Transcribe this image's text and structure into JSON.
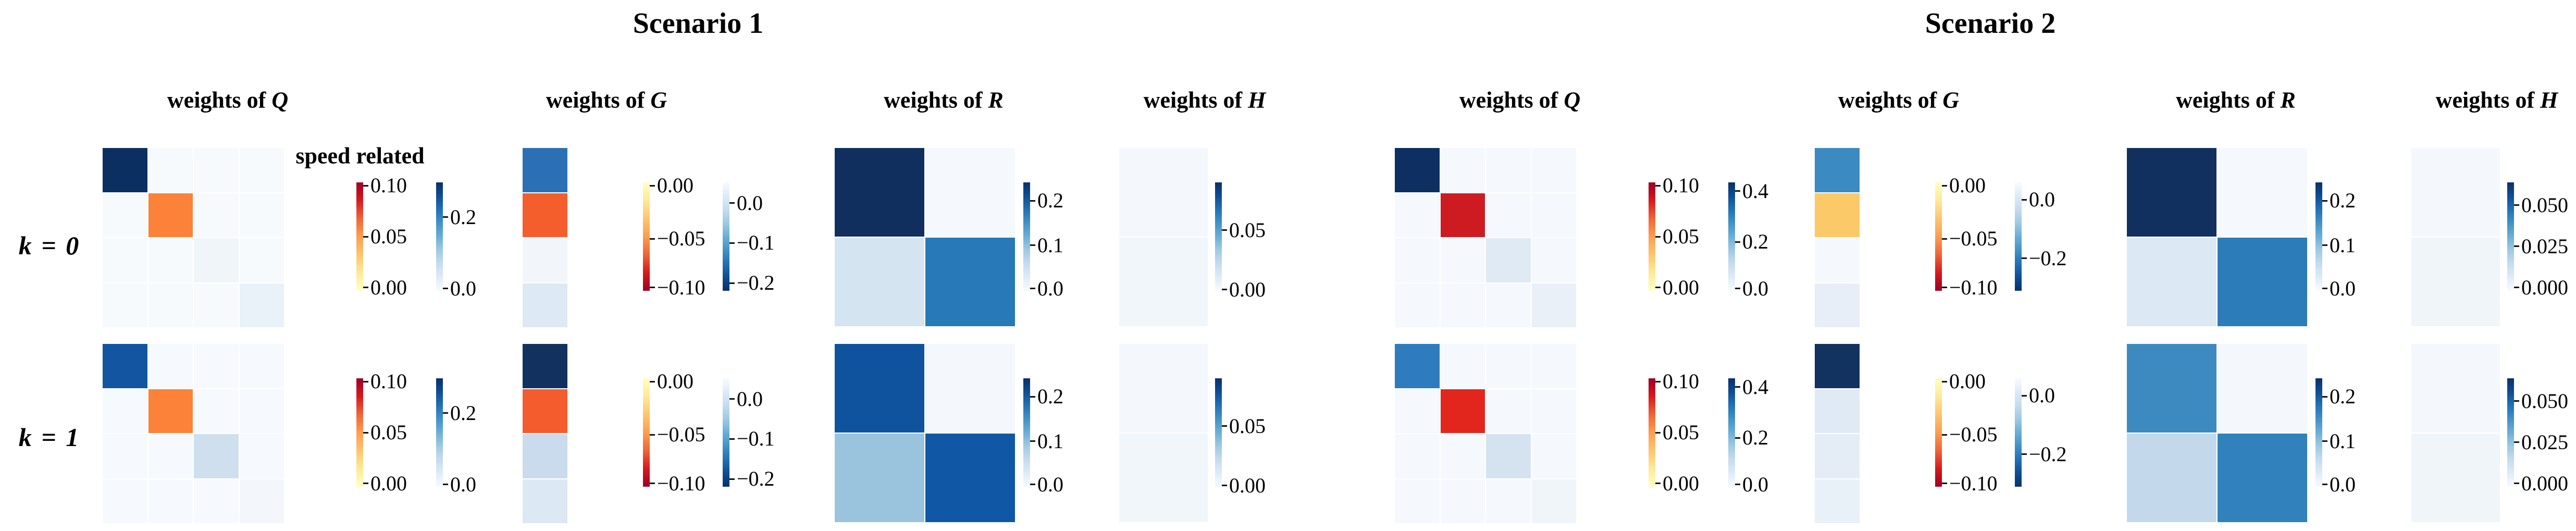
{
  "figure": {
    "row_labels": [
      "k = 0",
      "k = 1"
    ],
    "annotation": "speed related",
    "header_prefix": "weights of",
    "scenarios": [
      {
        "title": "Scenario 1",
        "matrices": [
          "Q",
          "G",
          "R",
          "H"
        ]
      },
      {
        "title": "Scenario 2",
        "matrices": [
          "Q",
          "G",
          "R",
          "H"
        ]
      }
    ]
  },
  "palettes": {
    "speed_top_red": [
      "#9c0026",
      "#d7191c",
      "#ef6538",
      "#fb9e4f",
      "#fdc570",
      "#fee999",
      "#ffffc2"
    ],
    "speed_top_yellow": [
      "#ffffc2",
      "#fee999",
      "#fdc570",
      "#fb9e4f",
      "#ef6538",
      "#d7191c",
      "#9c0026"
    ],
    "blues_top_dark": [
      "#08306b",
      "#0f4d92",
      "#2171b5",
      "#4292c6",
      "#6baed6",
      "#9ecae1",
      "#c6dbef",
      "#deebf7",
      "#f7fbff"
    ],
    "blues_top_light": [
      "#f7fbff",
      "#deebf7",
      "#c6dbef",
      "#9ecae1",
      "#6baed6",
      "#4292c6",
      "#2171b5",
      "#0f4d92",
      "#08306b"
    ]
  },
  "chart_data": [
    {
      "type": "heatmap",
      "scenario": 0,
      "scenario_label": "Scenario 1",
      "row": 0,
      "row_label": "k = 0",
      "matrix": "Q",
      "grid": [
        4,
        4
      ],
      "cells": [
        [
          "#0c2f62",
          "#f7fafd",
          "#f7fafd",
          "#f7fafd"
        ],
        [
          "#f7fafd",
          "#fb8238",
          "#f7fafd",
          "#f7fafd"
        ],
        [
          "#f7fafd",
          "#f7fafd",
          "#f0f5fa",
          "#f7fafd"
        ],
        [
          "#f7fafd",
          "#f7fafd",
          "#f7fafd",
          "#e9f1f9"
        ]
      ],
      "values_approx": [
        [
          0.29,
          0,
          0,
          0
        ],
        [
          0,
          0.05,
          0,
          0
        ],
        [
          0,
          0,
          0.01,
          0
        ],
        [
          0,
          0,
          0,
          0.02
        ]
      ],
      "colorbars": [
        {
          "palette": "speed_top_red",
          "ticks": [
            {
              "label": "0.10",
              "pos": 0.03
            },
            {
              "label": "0.05",
              "pos": 0.5
            },
            {
              "label": "0.00",
              "pos": 0.97
            }
          ]
        },
        {
          "palette": "blues_top_dark",
          "ticks": [
            {
              "label": "0.2",
              "pos": 0.32
            },
            {
              "label": "0.0",
              "pos": 0.98
            }
          ]
        }
      ]
    },
    {
      "type": "heatmap",
      "scenario": 0,
      "scenario_label": "Scenario 1",
      "row": 0,
      "row_label": "k = 0",
      "matrix": "G",
      "grid": [
        4,
        1
      ],
      "cells": [
        [
          "#2b70b5"
        ],
        [
          "#f45e2c"
        ],
        [
          "#f2f6fb"
        ],
        [
          "#dde9f4"
        ]
      ],
      "values_approx": [
        [
          -0.15
        ],
        [
          -0.045
        ],
        [
          -0.005
        ],
        [
          -0.03
        ]
      ],
      "colorbars": [
        {
          "palette": "speed_top_yellow",
          "ticks": [
            {
              "label": "0.00",
              "pos": 0.03
            },
            {
              "label": "−0.05",
              "pos": 0.52
            },
            {
              "label": "−0.10",
              "pos": 0.97
            }
          ]
        },
        {
          "palette": "blues_top_light",
          "ticks": [
            {
              "label": "0.0",
              "pos": 0.19
            },
            {
              "label": "−0.1",
              "pos": 0.56
            },
            {
              "label": "−0.2",
              "pos": 0.93
            }
          ]
        }
      ]
    },
    {
      "type": "heatmap",
      "scenario": 0,
      "scenario_label": "Scenario 1",
      "row": 0,
      "row_label": "k = 0",
      "matrix": "R",
      "grid": [
        2,
        2
      ],
      "cells": [
        [
          "#102f5e",
          "#f5f8fd"
        ],
        [
          "#d5e4f1",
          "#2779b8"
        ]
      ],
      "values_approx": [
        [
          0.27,
          0.005
        ],
        [
          0.035,
          0.17
        ]
      ],
      "colorbars": [
        {
          "palette": "blues_top_dark",
          "ticks": [
            {
              "label": "0.2",
              "pos": 0.17
            },
            {
              "label": "0.1",
              "pos": 0.58
            },
            {
              "label": "0.0",
              "pos": 0.98
            }
          ]
        }
      ]
    },
    {
      "type": "heatmap",
      "scenario": 0,
      "scenario_label": "Scenario 1",
      "row": 0,
      "row_label": "k = 0",
      "matrix": "H",
      "grid": [
        2,
        1
      ],
      "cells": [
        [
          "#f4f8fd"
        ],
        [
          "#f1f6fb"
        ]
      ],
      "values_approx": [
        [
          0.003
        ],
        [
          0.005
        ]
      ],
      "colorbars": [
        {
          "palette": "blues_top_dark",
          "ticks": [
            {
              "label": "0.05",
              "pos": 0.44
            },
            {
              "label": "0.00",
              "pos": 0.99
            }
          ]
        }
      ]
    },
    {
      "type": "heatmap",
      "scenario": 0,
      "scenario_label": "Scenario 1",
      "row": 1,
      "row_label": "k = 1",
      "matrix": "Q",
      "grid": [
        4,
        4
      ],
      "cells": [
        [
          "#1355a0",
          "#f6f9fd",
          "#f6f9fd",
          "#f6f9fd"
        ],
        [
          "#f6f9fd",
          "#fb8238",
          "#f6f9fd",
          "#f6f9fd"
        ],
        [
          "#f6f9fd",
          "#f6f9fd",
          "#cfdfed",
          "#f6f9fd"
        ],
        [
          "#f6f9fd",
          "#f6f9fd",
          "#f6f9fd",
          "#f3f7fb"
        ]
      ],
      "values_approx": [
        [
          0.24,
          0,
          0,
          0
        ],
        [
          0,
          0.05,
          0,
          0
        ],
        [
          0,
          0,
          0.055,
          0
        ],
        [
          0,
          0,
          0,
          0.01
        ]
      ],
      "colorbars": [
        {
          "palette": "speed_top_red",
          "ticks": [
            {
              "label": "0.10",
              "pos": 0.03
            },
            {
              "label": "0.05",
              "pos": 0.5
            },
            {
              "label": "0.00",
              "pos": 0.97
            }
          ]
        },
        {
          "palette": "blues_top_dark",
          "ticks": [
            {
              "label": "0.2",
              "pos": 0.32
            },
            {
              "label": "0.0",
              "pos": 0.98
            }
          ]
        }
      ]
    },
    {
      "type": "heatmap",
      "scenario": 0,
      "scenario_label": "Scenario 1",
      "row": 1,
      "row_label": "k = 1",
      "matrix": "G",
      "grid": [
        4,
        1
      ],
      "cells": [
        [
          "#12315f"
        ],
        [
          "#f45c2e"
        ],
        [
          "#c9dbec"
        ],
        [
          "#dce8f4"
        ]
      ],
      "values_approx": [
        [
          -0.22
        ],
        [
          -0.05
        ],
        [
          -0.04
        ],
        [
          -0.025
        ]
      ],
      "colorbars": [
        {
          "palette": "speed_top_yellow",
          "ticks": [
            {
              "label": "0.00",
              "pos": 0.03
            },
            {
              "label": "−0.05",
              "pos": 0.52
            },
            {
              "label": "−0.10",
              "pos": 0.97
            }
          ]
        },
        {
          "palette": "blues_top_light",
          "ticks": [
            {
              "label": "0.0",
              "pos": 0.19
            },
            {
              "label": "−0.1",
              "pos": 0.56
            },
            {
              "label": "−0.2",
              "pos": 0.93
            }
          ]
        }
      ]
    },
    {
      "type": "heatmap",
      "scenario": 0,
      "scenario_label": "Scenario 1",
      "row": 1,
      "row_label": "k = 1",
      "matrix": "R",
      "grid": [
        2,
        2
      ],
      "cells": [
        [
          "#0f539e",
          "#f4f8fd"
        ],
        [
          "#9ac4dd",
          "#1058a5"
        ]
      ],
      "values_approx": [
        [
          0.21,
          0.005
        ],
        [
          0.09,
          0.2
        ]
      ],
      "colorbars": [
        {
          "palette": "blues_top_dark",
          "ticks": [
            {
              "label": "0.2",
              "pos": 0.17
            },
            {
              "label": "0.1",
              "pos": 0.58
            },
            {
              "label": "0.0",
              "pos": 0.98
            }
          ]
        }
      ]
    },
    {
      "type": "heatmap",
      "scenario": 0,
      "scenario_label": "Scenario 1",
      "row": 1,
      "row_label": "k = 1",
      "matrix": "H",
      "grid": [
        2,
        1
      ],
      "cells": [
        [
          "#f4f8fd"
        ],
        [
          "#f1f6fb"
        ]
      ],
      "values_approx": [
        [
          0.003
        ],
        [
          0.005
        ]
      ],
      "colorbars": [
        {
          "palette": "blues_top_dark",
          "ticks": [
            {
              "label": "0.05",
              "pos": 0.44
            },
            {
              "label": "0.00",
              "pos": 0.99
            }
          ]
        }
      ]
    },
    {
      "type": "heatmap",
      "scenario": 1,
      "scenario_label": "Scenario 2",
      "row": 0,
      "row_label": "k = 0",
      "matrix": "Q",
      "grid": [
        4,
        4
      ],
      "cells": [
        [
          "#0d2f62",
          "#f5f8fd",
          "#f5f8fd",
          "#f5f8fd"
        ],
        [
          "#f5f8fd",
          "#cd1b21",
          "#f5f8fd",
          "#f5f8fd"
        ],
        [
          "#f5f8fd",
          "#f5f8fd",
          "#e0eaf4",
          "#f5f8fd"
        ],
        [
          "#f5f8fd",
          "#f5f8fd",
          "#f5f8fd",
          "#e9f0f7"
        ]
      ],
      "values_approx": [
        [
          0.44,
          0,
          0,
          0
        ],
        [
          0,
          0.09,
          0,
          0
        ],
        [
          0,
          0,
          0.03,
          0
        ],
        [
          0,
          0,
          0,
          0.02
        ]
      ],
      "colorbars": [
        {
          "palette": "speed_top_red",
          "ticks": [
            {
              "label": "0.10",
              "pos": 0.03
            },
            {
              "label": "0.05",
              "pos": 0.5
            },
            {
              "label": "0.00",
              "pos": 0.97
            }
          ]
        },
        {
          "palette": "blues_top_dark",
          "ticks": [
            {
              "label": "0.4",
              "pos": 0.08
            },
            {
              "label": "0.2",
              "pos": 0.55
            },
            {
              "label": "0.0",
              "pos": 0.98
            }
          ]
        }
      ]
    },
    {
      "type": "heatmap",
      "scenario": 1,
      "scenario_label": "Scenario 2",
      "row": 0,
      "row_label": "k = 0",
      "matrix": "G",
      "grid": [
        4,
        1
      ],
      "cells": [
        [
          "#3b8ac2"
        ],
        [
          "#fcc968"
        ],
        [
          "#f5f9fd"
        ],
        [
          "#e7eef7"
        ]
      ],
      "values_approx": [
        [
          -0.12
        ],
        [
          -0.025
        ],
        [
          -0.003
        ],
        [
          -0.02
        ]
      ],
      "colorbars": [
        {
          "palette": "speed_top_yellow",
          "ticks": [
            {
              "label": "0.00",
              "pos": 0.03
            },
            {
              "label": "−0.05",
              "pos": 0.52
            },
            {
              "label": "−0.10",
              "pos": 0.97
            }
          ]
        },
        {
          "palette": "blues_top_light",
          "ticks": [
            {
              "label": "0.0",
              "pos": 0.16
            },
            {
              "label": "−0.2",
              "pos": 0.7
            }
          ]
        }
      ]
    },
    {
      "type": "heatmap",
      "scenario": 1,
      "scenario_label": "Scenario 2",
      "row": 0,
      "row_label": "k = 0",
      "matrix": "R",
      "grid": [
        2,
        2
      ],
      "cells": [
        [
          "#12305f",
          "#f5f8fd"
        ],
        [
          "#dce8f3",
          "#2c7cba"
        ]
      ],
      "values_approx": [
        [
          0.27,
          0.005
        ],
        [
          0.03,
          0.16
        ]
      ],
      "colorbars": [
        {
          "palette": "blues_top_dark",
          "ticks": [
            {
              "label": "0.2",
              "pos": 0.17
            },
            {
              "label": "0.1",
              "pos": 0.58
            },
            {
              "label": "0.0",
              "pos": 0.98
            }
          ]
        }
      ]
    },
    {
      "type": "heatmap",
      "scenario": 1,
      "scenario_label": "Scenario 2",
      "row": 0,
      "row_label": "k = 0",
      "matrix": "H",
      "grid": [
        2,
        1
      ],
      "cells": [
        [
          "#f4f8fd"
        ],
        [
          "#f0f5fa"
        ]
      ],
      "values_approx": [
        [
          0.002
        ],
        [
          0.004
        ]
      ],
      "colorbars": [
        {
          "palette": "blues_top_dark",
          "ticks": [
            {
              "label": "0.050",
              "pos": 0.21
            },
            {
              "label": "0.025",
              "pos": 0.59
            },
            {
              "label": "0.000",
              "pos": 0.97
            }
          ]
        }
      ]
    },
    {
      "type": "heatmap",
      "scenario": 1,
      "scenario_label": "Scenario 2",
      "row": 1,
      "row_label": "k = 1",
      "matrix": "Q",
      "grid": [
        4,
        4
      ],
      "cells": [
        [
          "#2e7bbd",
          "#f5f8fd",
          "#f5f8fd",
          "#f5f8fd"
        ],
        [
          "#f5f8fd",
          "#e3261d",
          "#f5f8fd",
          "#f5f8fd"
        ],
        [
          "#f5f8fd",
          "#f5f8fd",
          "#d5e3f0",
          "#f5f8fd"
        ],
        [
          "#f5f8fd",
          "#f5f8fd",
          "#f5f8fd",
          "#f0f5fa"
        ]
      ],
      "values_approx": [
        [
          0.3,
          0,
          0,
          0
        ],
        [
          0,
          0.085,
          0,
          0
        ],
        [
          0,
          0,
          0.04,
          0
        ],
        [
          0,
          0,
          0,
          0.01
        ]
      ],
      "colorbars": [
        {
          "palette": "speed_top_red",
          "ticks": [
            {
              "label": "0.10",
              "pos": 0.03
            },
            {
              "label": "0.05",
              "pos": 0.5
            },
            {
              "label": "0.00",
              "pos": 0.97
            }
          ]
        },
        {
          "palette": "blues_top_dark",
          "ticks": [
            {
              "label": "0.4",
              "pos": 0.08
            },
            {
              "label": "0.2",
              "pos": 0.55
            },
            {
              "label": "0.0",
              "pos": 0.98
            }
          ]
        }
      ]
    },
    {
      "type": "heatmap",
      "scenario": 1,
      "scenario_label": "Scenario 2",
      "row": 1,
      "row_label": "k = 1",
      "matrix": "G",
      "grid": [
        4,
        1
      ],
      "cells": [
        [
          "#12325f"
        ],
        [
          "#e0eaf4"
        ],
        [
          "#e4edf6"
        ],
        [
          "#e8f0f8"
        ]
      ],
      "values_approx": [
        [
          -0.28
        ],
        [
          -0.02
        ],
        [
          -0.018
        ],
        [
          -0.015
        ]
      ],
      "colorbars": [
        {
          "palette": "speed_top_yellow",
          "ticks": [
            {
              "label": "0.00",
              "pos": 0.03
            },
            {
              "label": "−0.05",
              "pos": 0.52
            },
            {
              "label": "−0.10",
              "pos": 0.97
            }
          ]
        },
        {
          "palette": "blues_top_light",
          "ticks": [
            {
              "label": "0.0",
              "pos": 0.16
            },
            {
              "label": "−0.2",
              "pos": 0.7
            }
          ]
        }
      ]
    },
    {
      "type": "heatmap",
      "scenario": 1,
      "scenario_label": "Scenario 2",
      "row": 1,
      "row_label": "k = 1",
      "matrix": "R",
      "grid": [
        2,
        2
      ],
      "cells": [
        [
          "#3d8ac1",
          "#f4f8fd"
        ],
        [
          "#c3d8ea",
          "#3181bd"
        ]
      ],
      "values_approx": [
        [
          0.15,
          0.005
        ],
        [
          0.055,
          0.155
        ]
      ],
      "colorbars": [
        {
          "palette": "blues_top_dark",
          "ticks": [
            {
              "label": "0.2",
              "pos": 0.17
            },
            {
              "label": "0.1",
              "pos": 0.58
            },
            {
              "label": "0.0",
              "pos": 0.98
            }
          ]
        }
      ]
    },
    {
      "type": "heatmap",
      "scenario": 1,
      "scenario_label": "Scenario 2",
      "row": 1,
      "row_label": "k = 1",
      "matrix": "H",
      "grid": [
        2,
        1
      ],
      "cells": [
        [
          "#f4f8fd"
        ],
        [
          "#f0f5fa"
        ]
      ],
      "values_approx": [
        [
          0.002
        ],
        [
          0.004
        ]
      ],
      "colorbars": [
        {
          "palette": "blues_top_dark",
          "ticks": [
            {
              "label": "0.050",
              "pos": 0.21
            },
            {
              "label": "0.025",
              "pos": 0.59
            },
            {
              "label": "0.000",
              "pos": 0.97
            }
          ]
        }
      ]
    }
  ]
}
